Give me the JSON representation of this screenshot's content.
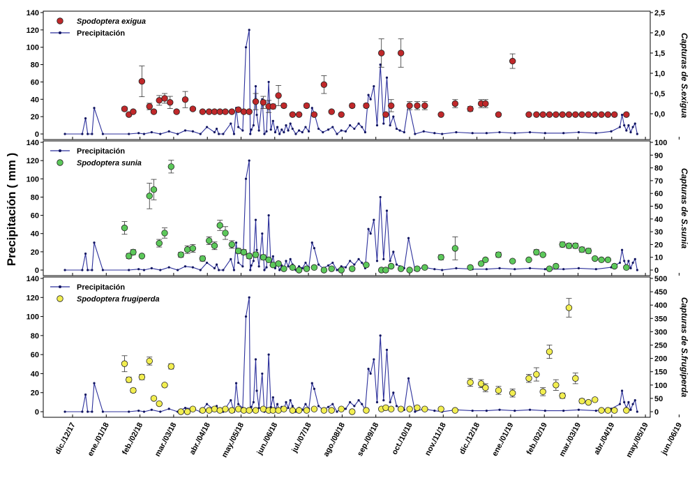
{
  "figure": {
    "ylabel_left": "Precipitación ( mm )",
    "x_ticks": [
      "dic./12/17",
      "ene./01/18",
      "feb./02/18",
      "mar./03/18",
      "abr./04/18",
      "may./05/18",
      "jun./06/18",
      "jul./07/18",
      "ago./08/18",
      "sep./09/18",
      "oct./10/18",
      "nov./11/18",
      "dic./12/18",
      "ene./01/19",
      "feb./02/19",
      "mar./03/19",
      "abr./04/19",
      "may./05/19",
      "jun./06/19"
    ]
  },
  "colors": {
    "precip_line": "#2b2f9b",
    "precip_marker": "#101460",
    "exigua_fill": "#c0282a",
    "sunia_fill": "#5cc85a",
    "frugiperda_fill": "#f2ee50"
  },
  "chart_data": [
    {
      "type": "scatter",
      "panel": "top",
      "xlabel": "",
      "ylabel": "",
      "ylabel_right": "Capturas de S.exigua",
      "left_ticks": [
        "0",
        "20",
        "40",
        "60",
        "80",
        "100",
        "120",
        "140"
      ],
      "right_ticks": [
        "0,0",
        "0,5",
        "1,0",
        "1,5",
        "2,0",
        "2,5"
      ],
      "ylim_left": [
        0,
        140
      ],
      "ylim_right": [
        -0.5,
        2.5
      ],
      "legend_position": "top-left",
      "legend": [
        {
          "label": "Spodoptera exigua",
          "kind": "capture"
        },
        {
          "label": "Precipitación",
          "kind": "precip"
        }
      ],
      "series": [
        {
          "name": "Spodoptera exigua",
          "axis": "right",
          "x": [
            "2018-02-25",
            "2018-03-01",
            "2018-03-05",
            "2018-03-13",
            "2018-03-20",
            "2018-03-24",
            "2018-03-29",
            "2018-04-03",
            "2018-04-08",
            "2018-04-14",
            "2018-04-22",
            "2018-04-29",
            "2018-05-08",
            "2018-05-14",
            "2018-05-19",
            "2018-05-24",
            "2018-05-29",
            "2018-06-04",
            "2018-06-10",
            "2018-06-15",
            "2018-06-20",
            "2018-06-26",
            "2018-07-03",
            "2018-07-08",
            "2018-07-12",
            "2018-07-17",
            "2018-07-22",
            "2018-07-30",
            "2018-08-05",
            "2018-08-12",
            "2018-08-19",
            "2018-08-28",
            "2018-09-04",
            "2018-09-13",
            "2018-09-23",
            "2018-10-06",
            "2018-10-20",
            "2018-10-24",
            "2018-10-29",
            "2018-11-07",
            "2018-11-15",
            "2018-11-22",
            "2018-11-29",
            "2018-12-14",
            "2018-12-27",
            "2019-01-10",
            "2019-01-20",
            "2019-01-24",
            "2019-02-05",
            "2019-02-18",
            "2019-03-05",
            "2019-03-12",
            "2019-03-18",
            "2019-03-24",
            "2019-03-30",
            "2019-04-05",
            "2019-04-11",
            "2019-04-17",
            "2019-04-23",
            "2019-04-29",
            "2019-05-05",
            "2019-05-11",
            "2019-05-17",
            "2019-05-23",
            "2019-06-03"
          ],
          "values": [
            0.12,
            -0.02,
            0.05,
            0.8,
            0.18,
            0.05,
            0.33,
            0.38,
            0.28,
            0.05,
            0.35,
            0.12,
            0.05,
            0.05,
            0.05,
            0.05,
            0.05,
            0.05,
            0.1,
            0.05,
            0.05,
            0.3,
            0.28,
            0.18,
            0.18,
            0.45,
            0.2,
            -0.02,
            -0.02,
            0.2,
            -0.02,
            0.72,
            0.05,
            -0.02,
            0.2,
            0.2,
            1.5,
            -0.02,
            0.2,
            1.5,
            0.2,
            0.2,
            0.2,
            -0.02,
            0.25,
            0.12,
            0.25,
            0.25,
            -0.02,
            1.3,
            -0.02,
            -0.02,
            -0.02,
            -0.02,
            -0.02,
            -0.02,
            -0.02,
            -0.02,
            -0.02,
            -0.02,
            -0.02,
            -0.02,
            -0.02,
            -0.02,
            -0.02
          ],
          "error": [
            0.05,
            0.04,
            0.03,
            0.38,
            0.08,
            0.04,
            0.12,
            0.12,
            0.15,
            0.04,
            0.2,
            0.04,
            0.03,
            0.03,
            0.03,
            0.03,
            0.03,
            0.03,
            0.03,
            0.03,
            0.03,
            0.2,
            0.15,
            0.15,
            0.06,
            0.25,
            0.05,
            0,
            0,
            0.05,
            0,
            0.22,
            0.03,
            0,
            0.05,
            0.05,
            0.35,
            0,
            0.15,
            0.35,
            0.1,
            0.1,
            0.1,
            0,
            0.1,
            0.06,
            0.1,
            0.1,
            0,
            0.18,
            0,
            0,
            0,
            0,
            0,
            0,
            0,
            0,
            0,
            0,
            0,
            0,
            0,
            0,
            0
          ]
        }
      ]
    },
    {
      "type": "scatter",
      "panel": "middle",
      "xlabel": "",
      "ylabel": "",
      "ylabel_right": "Capturas de S.sunia",
      "left_ticks": [
        "0",
        "20",
        "40",
        "60",
        "80",
        "100",
        "120",
        "140"
      ],
      "right_ticks": [
        "0",
        "10",
        "20",
        "30",
        "40",
        "50",
        "60",
        "70",
        "80",
        "90",
        "100"
      ],
      "ylim_left": [
        0,
        140
      ],
      "ylim_right": [
        0,
        100
      ],
      "legend_position": "top-left",
      "legend": [
        {
          "label": "Precipitación",
          "kind": "precip"
        },
        {
          "label": "Spodoptera sunia",
          "kind": "capture"
        }
      ],
      "series": [
        {
          "name": "Spodoptera sunia",
          "axis": "right",
          "x": [
            "2018-02-25",
            "2018-03-01",
            "2018-03-05",
            "2018-03-13",
            "2018-03-20",
            "2018-03-24",
            "2018-03-29",
            "2018-04-03",
            "2018-04-09",
            "2018-04-18",
            "2018-04-24",
            "2018-04-29",
            "2018-05-08",
            "2018-05-14",
            "2018-05-19",
            "2018-05-24",
            "2018-05-29",
            "2018-06-04",
            "2018-06-10",
            "2018-06-15",
            "2018-06-20",
            "2018-06-26",
            "2018-07-03",
            "2018-07-08",
            "2018-07-12",
            "2018-07-17",
            "2018-07-22",
            "2018-07-30",
            "2018-08-05",
            "2018-08-12",
            "2018-08-19",
            "2018-08-28",
            "2018-09-04",
            "2018-09-13",
            "2018-09-23",
            "2018-10-06",
            "2018-10-20",
            "2018-10-24",
            "2018-10-29",
            "2018-11-07",
            "2018-11-15",
            "2018-11-22",
            "2018-11-29",
            "2018-12-14",
            "2018-12-27",
            "2019-01-10",
            "2019-01-20",
            "2019-01-24",
            "2019-02-05",
            "2019-02-18",
            "2019-03-05",
            "2019-03-12",
            "2019-03-18",
            "2019-03-24",
            "2019-03-30",
            "2019-04-05",
            "2019-04-11",
            "2019-04-17",
            "2019-04-23",
            "2019-04-29",
            "2019-05-05",
            "2019-05-11",
            "2019-05-17",
            "2019-05-23",
            "2019-06-03"
          ],
          "values": [
            33,
            11,
            14,
            11,
            58,
            63,
            21,
            29,
            81,
            12,
            16,
            17,
            9,
            23,
            19,
            35,
            29,
            20,
            15,
            14,
            11,
            12,
            10,
            8,
            4,
            5,
            1,
            2,
            0,
            1,
            2,
            0,
            1,
            0,
            1,
            4,
            0,
            0,
            3,
            1,
            0,
            1,
            2,
            10,
            17,
            2,
            5,
            8,
            12,
            7,
            8,
            14,
            12,
            1,
            3,
            20,
            19,
            19,
            16,
            15,
            9,
            8,
            8,
            3,
            2
          ],
          "error": [
            5,
            2,
            2,
            1,
            10,
            8,
            3,
            4,
            5,
            2,
            3,
            3,
            2,
            3,
            3,
            4,
            5,
            3,
            2,
            2,
            2,
            2,
            2,
            1,
            1,
            1,
            0,
            1,
            0,
            0,
            1,
            0,
            0,
            0,
            0,
            1,
            0,
            0,
            1,
            0,
            0,
            0,
            1,
            2,
            9,
            1,
            1,
            1,
            2,
            1,
            1,
            2,
            1,
            0,
            1,
            2,
            2,
            2,
            2,
            2,
            1,
            1,
            1,
            1,
            1
          ]
        }
      ]
    },
    {
      "type": "scatter",
      "panel": "bottom",
      "xlabel": "",
      "ylabel": "",
      "ylabel_right": "Capturas de S.frugiperda",
      "left_ticks": [
        "0",
        "20",
        "40",
        "60",
        "80",
        "100",
        "120",
        "140"
      ],
      "right_ticks": [
        "0",
        "50",
        "100",
        "150",
        "200",
        "250",
        "300",
        "350",
        "400",
        "450",
        "500"
      ],
      "ylim_left": [
        0,
        140
      ],
      "ylim_right": [
        0,
        500
      ],
      "legend_position": "top-left",
      "legend": [
        {
          "label": "Precipitación",
          "kind": "precip"
        },
        {
          "label": "Spodoptera frugiperda",
          "kind": "capture"
        }
      ],
      "series": [
        {
          "name": "Spodoptera frugiperda",
          "axis": "right",
          "x": [
            "2018-02-25",
            "2018-03-01",
            "2018-03-05",
            "2018-03-13",
            "2018-03-20",
            "2018-03-24",
            "2018-03-29",
            "2018-04-03",
            "2018-04-09",
            "2018-04-18",
            "2018-04-24",
            "2018-04-29",
            "2018-05-08",
            "2018-05-14",
            "2018-05-19",
            "2018-05-24",
            "2018-05-29",
            "2018-06-04",
            "2018-06-10",
            "2018-06-15",
            "2018-06-20",
            "2018-06-26",
            "2018-07-03",
            "2018-07-08",
            "2018-07-12",
            "2018-07-17",
            "2018-07-22",
            "2018-07-30",
            "2018-08-05",
            "2018-08-12",
            "2018-08-19",
            "2018-08-28",
            "2018-09-04",
            "2018-09-13",
            "2018-09-23",
            "2018-10-06",
            "2018-10-20",
            "2018-10-24",
            "2018-10-29",
            "2018-11-07",
            "2018-11-15",
            "2018-11-22",
            "2018-11-29",
            "2018-12-14",
            "2018-12-27",
            "2019-01-10",
            "2019-01-20",
            "2019-01-24",
            "2019-02-05",
            "2019-02-18",
            "2019-03-05",
            "2019-03-12",
            "2019-03-18",
            "2019-03-24",
            "2019-03-30",
            "2019-04-05",
            "2019-04-11",
            "2019-04-17",
            "2019-04-23",
            "2019-04-29",
            "2019-05-05",
            "2019-05-11",
            "2019-05-17",
            "2019-05-23",
            "2019-06-03"
          ],
          "values": [
            180,
            120,
            80,
            130,
            190,
            50,
            30,
            100,
            170,
            0,
            0,
            10,
            5,
            5,
            10,
            5,
            10,
            5,
            10,
            5,
            5,
            5,
            10,
            5,
            5,
            5,
            10,
            5,
            5,
            5,
            10,
            5,
            5,
            10,
            0,
            5,
            10,
            15,
            10,
            10,
            10,
            15,
            10,
            10,
            5,
            110,
            105,
            90,
            80,
            70,
            125,
            140,
            75,
            225,
            100,
            60,
            390,
            125,
            40,
            35,
            45,
            5,
            5,
            5,
            5
          ],
          "error": [
            30,
            10,
            8,
            10,
            15,
            6,
            4,
            5,
            10,
            0,
            0,
            3,
            2,
            2,
            3,
            2,
            3,
            2,
            3,
            2,
            2,
            2,
            3,
            2,
            2,
            2,
            3,
            2,
            2,
            2,
            3,
            2,
            2,
            3,
            0,
            2,
            3,
            3,
            3,
            3,
            3,
            3,
            3,
            3,
            2,
            15,
            15,
            15,
            15,
            15,
            15,
            25,
            15,
            25,
            20,
            10,
            35,
            20,
            8,
            5,
            5,
            2,
            2,
            2,
            2
          ]
        }
      ]
    }
  ],
  "precipitation_events": {
    "name": "Precipitación",
    "x": [
      "2018-01-01",
      "2018-01-17",
      "2018-01-20",
      "2018-01-22",
      "2018-01-26",
      "2018-01-28",
      "2018-02-05",
      "2018-03-01",
      "2018-03-10",
      "2018-03-15",
      "2018-03-22",
      "2018-03-30",
      "2018-04-07",
      "2018-04-15",
      "2018-04-22",
      "2018-04-29",
      "2018-05-06",
      "2018-05-12",
      "2018-05-19",
      "2018-05-21",
      "2018-05-23",
      "2018-05-27",
      "2018-06-03",
      "2018-06-06",
      "2018-06-08",
      "2018-06-10",
      "2018-06-14",
      "2018-06-17",
      "2018-06-20",
      "2018-06-21",
      "2018-06-22",
      "2018-06-24",
      "2018-06-26",
      "2018-06-27",
      "2018-06-29",
      "2018-07-02",
      "2018-07-04",
      "2018-07-06",
      "2018-07-08",
      "2018-07-10",
      "2018-07-12",
      "2018-07-14",
      "2018-07-16",
      "2018-07-18",
      "2018-07-20",
      "2018-07-22",
      "2018-07-24",
      "2018-07-26",
      "2018-07-28",
      "2018-07-30",
      "2018-08-02",
      "2018-08-05",
      "2018-08-08",
      "2018-08-11",
      "2018-08-14",
      "2018-08-17",
      "2018-08-19",
      "2018-08-23",
      "2018-08-27",
      "2018-09-01",
      "2018-09-05",
      "2018-09-09",
      "2018-09-13",
      "2018-09-17",
      "2018-09-21",
      "2018-09-25",
      "2018-09-29",
      "2018-10-02",
      "2018-10-05",
      "2018-10-08",
      "2018-10-10",
      "2018-10-13",
      "2018-10-16",
      "2018-10-19",
      "2018-10-22",
      "2018-10-25",
      "2018-10-28",
      "2018-10-31",
      "2018-11-03",
      "2018-11-06",
      "2018-11-10",
      "2018-11-14",
      "2018-11-20",
      "2018-11-28",
      "2018-12-08",
      "2018-12-15",
      "2018-12-28",
      "2019-01-12",
      "2019-01-25",
      "2019-02-06",
      "2019-02-20",
      "2019-03-06",
      "2019-03-20",
      "2019-04-06",
      "2019-04-20",
      "2019-05-06",
      "2019-05-20",
      "2019-05-28",
      "2019-05-30",
      "2019-06-01",
      "2019-06-03",
      "2019-06-05",
      "2019-06-07",
      "2019-06-09",
      "2019-06-11",
      "2019-06-13"
    ],
    "values": [
      0,
      0,
      18,
      0,
      0,
      30,
      0,
      0,
      1,
      0,
      2,
      0,
      3,
      0,
      4,
      3,
      0,
      8,
      2,
      6,
      0,
      0,
      12,
      0,
      30,
      8,
      4,
      100,
      120,
      0,
      5,
      10,
      55,
      22,
      4,
      40,
      0,
      3,
      60,
      5,
      15,
      2,
      8,
      0,
      5,
      2,
      10,
      4,
      12,
      6,
      0,
      4,
      2,
      8,
      3,
      30,
      24,
      6,
      2,
      5,
      8,
      0,
      4,
      3,
      10,
      6,
      12,
      8,
      2,
      45,
      40,
      55,
      10,
      80,
      12,
      65,
      10,
      20,
      6,
      4,
      2,
      35,
      0,
      3,
      1,
      0,
      2,
      1,
      1,
      2,
      1,
      2,
      1,
      1,
      2,
      1,
      3,
      8,
      22,
      10,
      4,
      10,
      2,
      8,
      12,
      0
    ]
  }
}
